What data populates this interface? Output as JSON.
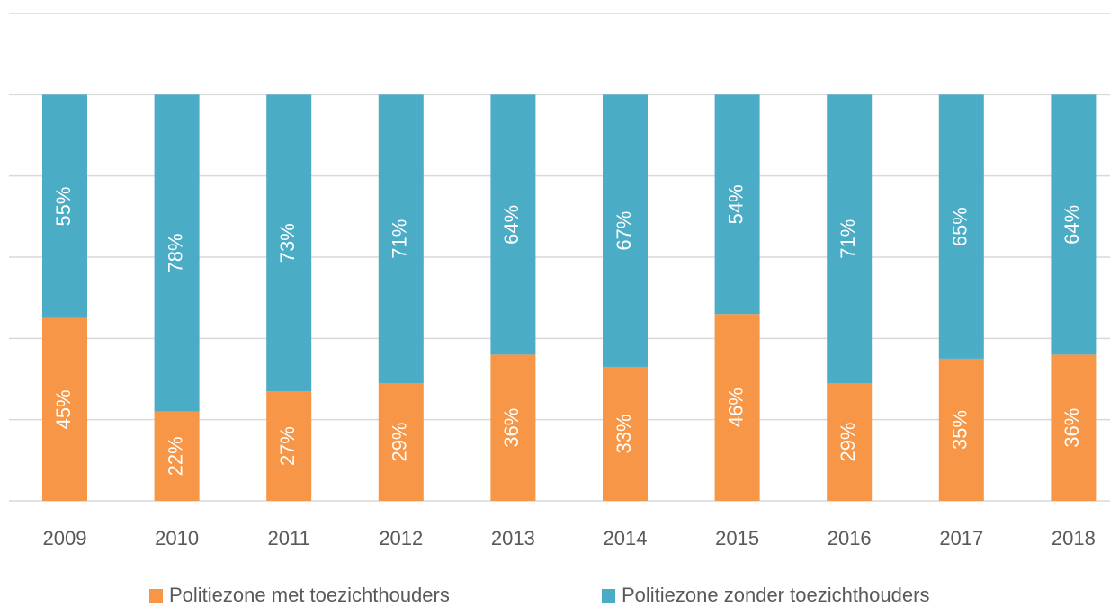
{
  "chart_data": {
    "type": "stacked_bar",
    "categories": [
      "2009",
      "2010",
      "2011",
      "2012",
      "2013",
      "2014",
      "2015",
      "2016",
      "2017",
      "2018"
    ],
    "series": [
      {
        "name": "Politiezone met toezichthouders",
        "color": "#F79646",
        "values": [
          45,
          22,
          27,
          29,
          36,
          33,
          46,
          29,
          35,
          36
        ],
        "value_labels": [
          "45%",
          "22%",
          "27%",
          "29%",
          "36%",
          "33%",
          "46%",
          "29%",
          "35%",
          "36%"
        ]
      },
      {
        "name": "Politiezone zonder toezichthouders",
        "color": "#4BACC6",
        "values": [
          55,
          78,
          73,
          71,
          64,
          67,
          54,
          71,
          65,
          64
        ],
        "value_labels": [
          "55%",
          "78%",
          "73%",
          "71%",
          "64%",
          "67%",
          "54%",
          "71%",
          "65%",
          "64%"
        ]
      }
    ],
    "ylim": [
      0,
      120
    ],
    "yticks": [
      0,
      20,
      40,
      60,
      80,
      100,
      120
    ],
    "grid": true,
    "legend": "bottom"
  }
}
